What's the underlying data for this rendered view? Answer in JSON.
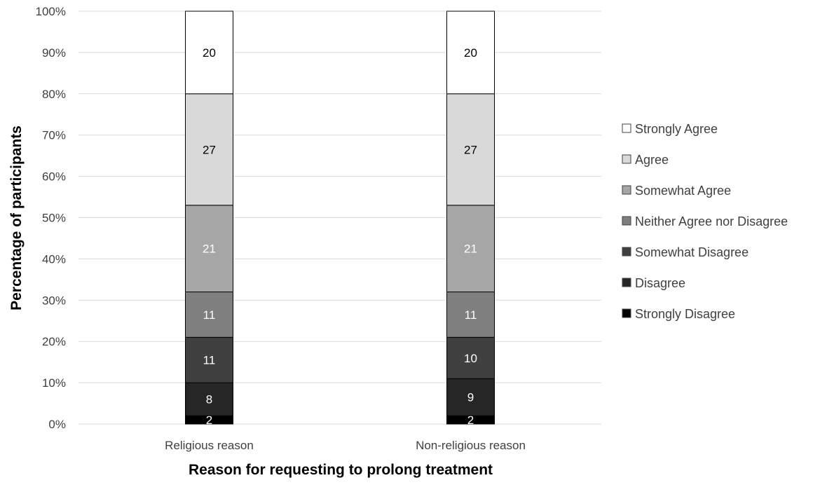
{
  "chart_data": {
    "type": "bar",
    "stacked": true,
    "percent_stacked": true,
    "categories": [
      "Religious reason",
      "Non-religious reason"
    ],
    "series": [
      {
        "name": "Strongly Disagree",
        "values": [
          2,
          2
        ],
        "color": "#000000",
        "label_color": "#ffffff"
      },
      {
        "name": "Disagree",
        "values": [
          8,
          9
        ],
        "color": "#262626",
        "label_color": "#ffffff"
      },
      {
        "name": "Somewhat Disagree",
        "values": [
          11,
          10
        ],
        "color": "#404040",
        "label_color": "#ffffff"
      },
      {
        "name": "Neither Agree nor Disagree",
        "values": [
          11,
          11
        ],
        "color": "#7f7f7f",
        "label_color": "#ffffff"
      },
      {
        "name": "Somewhat Agree",
        "values": [
          21,
          21
        ],
        "color": "#a6a6a6",
        "label_color": "#ffffff"
      },
      {
        "name": "Agree",
        "values": [
          27,
          27
        ],
        "color": "#d9d9d9",
        "label_color": "#000000"
      },
      {
        "name": "Strongly Agree",
        "values": [
          20,
          20
        ],
        "color": "#ffffff",
        "label_color": "#000000"
      }
    ],
    "xlabel": "Reason for requesting to prolong treatment",
    "ylabel": "Percentage of participants",
    "ylim": [
      0,
      100
    ],
    "yticks": [
      "0%",
      "10%",
      "20%",
      "30%",
      "40%",
      "50%",
      "60%",
      "70%",
      "80%",
      "90%",
      "100%"
    ],
    "grid": true,
    "legend_position": "right",
    "legend_order": [
      "Strongly Agree",
      "Agree",
      "Somewhat Agree",
      "Neither Agree nor Disagree",
      "Somewhat Disagree",
      "Disagree",
      "Strongly Disagree"
    ]
  }
}
